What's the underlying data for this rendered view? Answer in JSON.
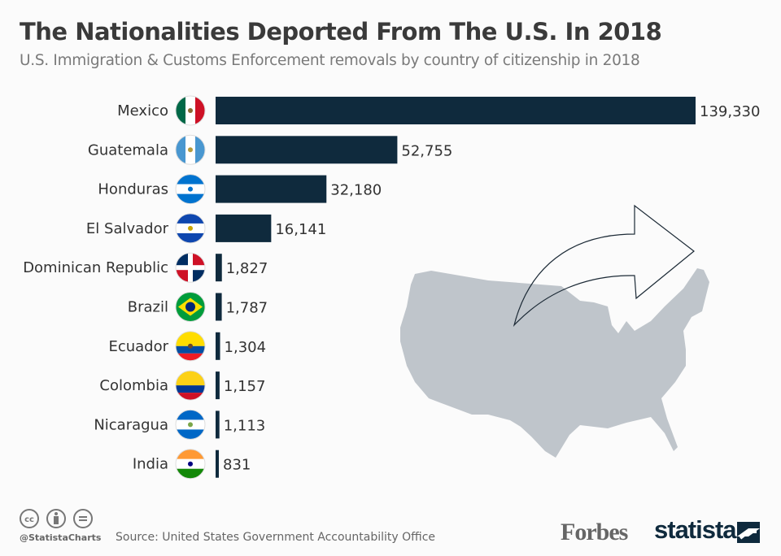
{
  "title": "The Nationalities Deported From The U.S. In 2018",
  "subtitle": "U.S. Immigration & Customs Enforcement removals by country of citizenship in 2018",
  "chart_data": {
    "type": "bar",
    "orientation": "horizontal",
    "categories": [
      "Mexico",
      "Guatemala",
      "Honduras",
      "El Salvador",
      "Dominican Republic",
      "Brazil",
      "Ecuador",
      "Colombia",
      "Nicaragua",
      "India"
    ],
    "values": [
      139330,
      52755,
      32180,
      16141,
      1827,
      1787,
      1304,
      1157,
      1113,
      831
    ],
    "labels": [
      "139,330",
      "52,755",
      "32,180",
      "16,141",
      "1,827",
      "1,787",
      "1,304",
      "1,157",
      "1,113",
      "831"
    ],
    "bar_color": "#0f2a3d",
    "grid": false
  },
  "footer": {
    "source": "Source: United States Government Accountability Office",
    "handle": "@StatistaCharts",
    "forbes": "Forbes",
    "statista": "statista"
  }
}
